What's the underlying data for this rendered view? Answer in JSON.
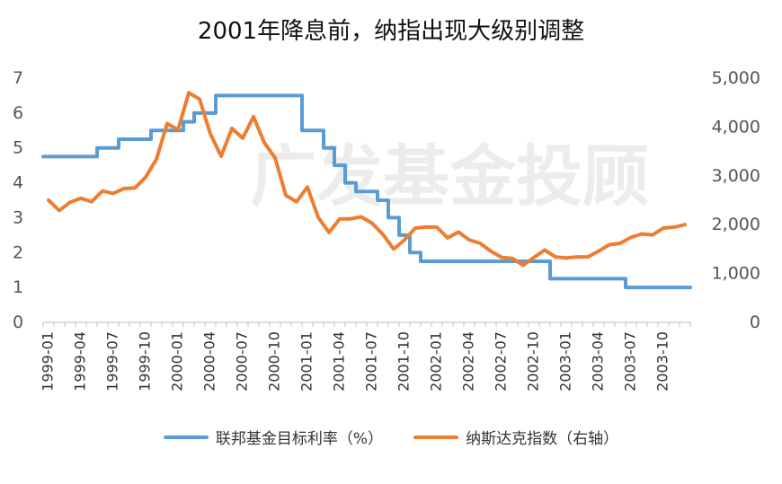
{
  "chart_data": {
    "type": "line",
    "title": "2001年降息前，纳指出现大级别调整",
    "watermark": "广发基金投顾",
    "colors": {
      "fed": "#5B9BD5",
      "nasdaq": "#ED7D31",
      "watermark": "#ececec"
    },
    "x": [
      "1999-01",
      "1999-02",
      "1999-03",
      "1999-04",
      "1999-05",
      "1999-06",
      "1999-07",
      "1999-08",
      "1999-09",
      "1999-10",
      "1999-11",
      "1999-12",
      "2000-01",
      "2000-02",
      "2000-03",
      "2000-04",
      "2000-05",
      "2000-06",
      "2000-07",
      "2000-08",
      "2000-09",
      "2000-10",
      "2000-11",
      "2000-12",
      "2001-01",
      "2001-02",
      "2001-03",
      "2001-04",
      "2001-05",
      "2001-06",
      "2001-07",
      "2001-08",
      "2001-09",
      "2001-10",
      "2001-11",
      "2001-12",
      "2002-01",
      "2002-02",
      "2002-03",
      "2002-04",
      "2002-05",
      "2002-06",
      "2002-07",
      "2002-08",
      "2002-09",
      "2002-10",
      "2002-11",
      "2002-12",
      "2003-01",
      "2003-02",
      "2003-03",
      "2003-04",
      "2003-05",
      "2003-06",
      "2003-07",
      "2003-08",
      "2003-09",
      "2003-10",
      "2003-11",
      "2003-12"
    ],
    "x_tick_labels": [
      "1999-01",
      "1999-04",
      "1999-07",
      "1999-10",
      "2000-01",
      "2000-04",
      "2000-07",
      "2000-10",
      "2001-01",
      "2001-04",
      "2001-07",
      "2001-10",
      "2002-01",
      "2002-04",
      "2002-07",
      "2002-10",
      "2003-01",
      "2003-04",
      "2003-07",
      "2003-10"
    ],
    "y_left": {
      "ticks": [
        "0",
        "1",
        "2",
        "3",
        "4",
        "5",
        "6",
        "7"
      ],
      "lim": [
        0,
        7
      ]
    },
    "y_right": {
      "ticks": [
        "0",
        "1,000",
        "2,000",
        "3,000",
        "4,000",
        "5,000"
      ],
      "lim": [
        0,
        5000
      ]
    },
    "series": [
      {
        "name": "联邦基金目标利率（%）",
        "axis": "left",
        "values": [
          4.75,
          4.75,
          4.75,
          4.75,
          4.75,
          5.0,
          5.0,
          5.25,
          5.25,
          5.25,
          5.5,
          5.5,
          5.5,
          5.75,
          6.0,
          6.0,
          6.5,
          6.5,
          6.5,
          6.5,
          6.5,
          6.5,
          6.5,
          6.5,
          5.5,
          5.5,
          5.0,
          4.5,
          4.0,
          3.75,
          3.75,
          3.5,
          3.0,
          2.5,
          2.0,
          1.75,
          1.75,
          1.75,
          1.75,
          1.75,
          1.75,
          1.75,
          1.75,
          1.75,
          1.75,
          1.75,
          1.75,
          1.25,
          1.25,
          1.25,
          1.25,
          1.25,
          1.25,
          1.25,
          1.0,
          1.0,
          1.0,
          1.0,
          1.0,
          1.0
        ]
      },
      {
        "name": "纳斯达克指数（右轴）",
        "axis": "right",
        "values": [
          2500,
          2290,
          2460,
          2540,
          2470,
          2690,
          2640,
          2740,
          2750,
          2970,
          3340,
          4070,
          3940,
          4700,
          4570,
          3860,
          3400,
          3970,
          3770,
          4210,
          3680,
          3370,
          2600,
          2470,
          2770,
          2150,
          1840,
          2120,
          2120,
          2160,
          2030,
          1800,
          1500,
          1690,
          1930,
          1950,
          1950,
          1730,
          1850,
          1690,
          1620,
          1460,
          1330,
          1310,
          1170,
          1330,
          1480,
          1340,
          1320,
          1340,
          1340,
          1460,
          1590,
          1620,
          1740,
          1810,
          1790,
          1930,
          1950,
          2000
        ]
      }
    ]
  }
}
